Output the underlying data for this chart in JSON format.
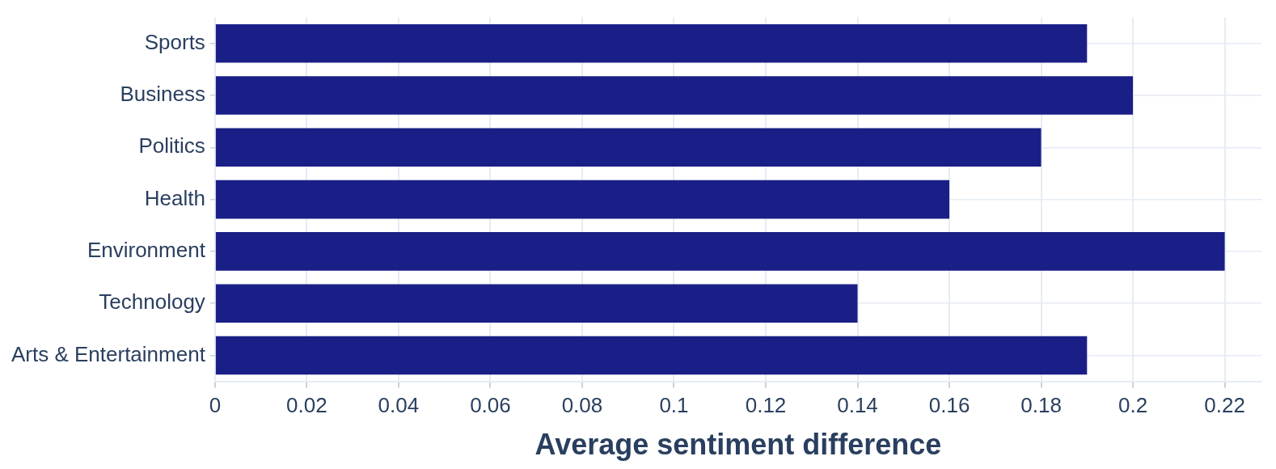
{
  "chart_data": {
    "type": "bar",
    "orientation": "horizontal",
    "xlabel": "Average sentiment difference",
    "categories": [
      "Sports",
      "Business",
      "Politics",
      "Health",
      "Environment",
      "Technology",
      "Arts & Entertainment"
    ],
    "values": [
      0.19,
      0.2,
      0.18,
      0.16,
      0.22,
      0.14,
      0.19
    ],
    "color": "#1a1f87",
    "xlim": [
      0,
      0.228
    ],
    "xticks": [
      0,
      0.02,
      0.04,
      0.06,
      0.08,
      0.1,
      0.12,
      0.14,
      0.16,
      0.18,
      0.2,
      0.22
    ],
    "grid": true
  }
}
